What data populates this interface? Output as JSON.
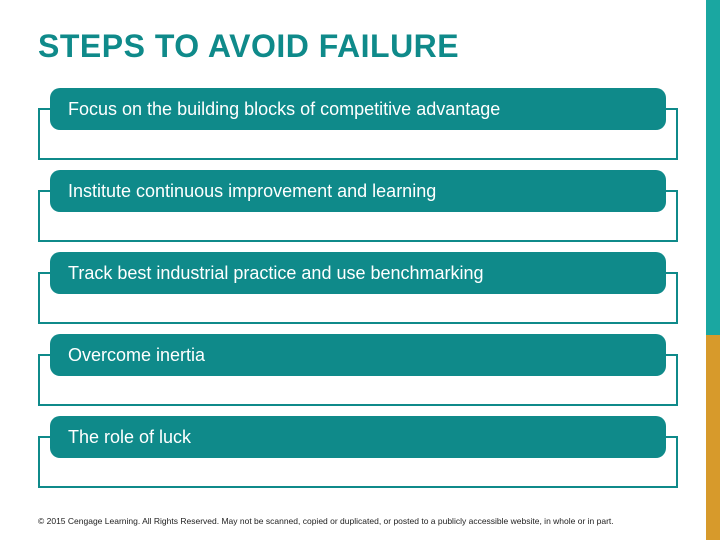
{
  "title": {
    "text": "STEPS TO AVOID FAILURE",
    "color": "#0f8a8a",
    "fontsize": 32
  },
  "accent": {
    "teal": "#1aa7a1",
    "gold": "#d79a2b",
    "split_percent": 62
  },
  "steps": {
    "pill_bg": "#0f8a8a",
    "pill_text_color": "#ffffff",
    "outline_color": "#0f8a8a",
    "pill_radius": 10,
    "pill_fontsize": 18,
    "items": [
      {
        "label": "Focus on the building blocks of competitive advantage"
      },
      {
        "label": "Institute continuous improvement and learning"
      },
      {
        "label": "Track best industrial practice and use benchmarking"
      },
      {
        "label": "Overcome inertia"
      },
      {
        "label": "The role of luck"
      }
    ]
  },
  "footer": {
    "text": "© 2015 Cengage Learning. All Rights Reserved. May not be scanned, copied or duplicated, or posted to a publicly accessible website, in whole or in part."
  }
}
